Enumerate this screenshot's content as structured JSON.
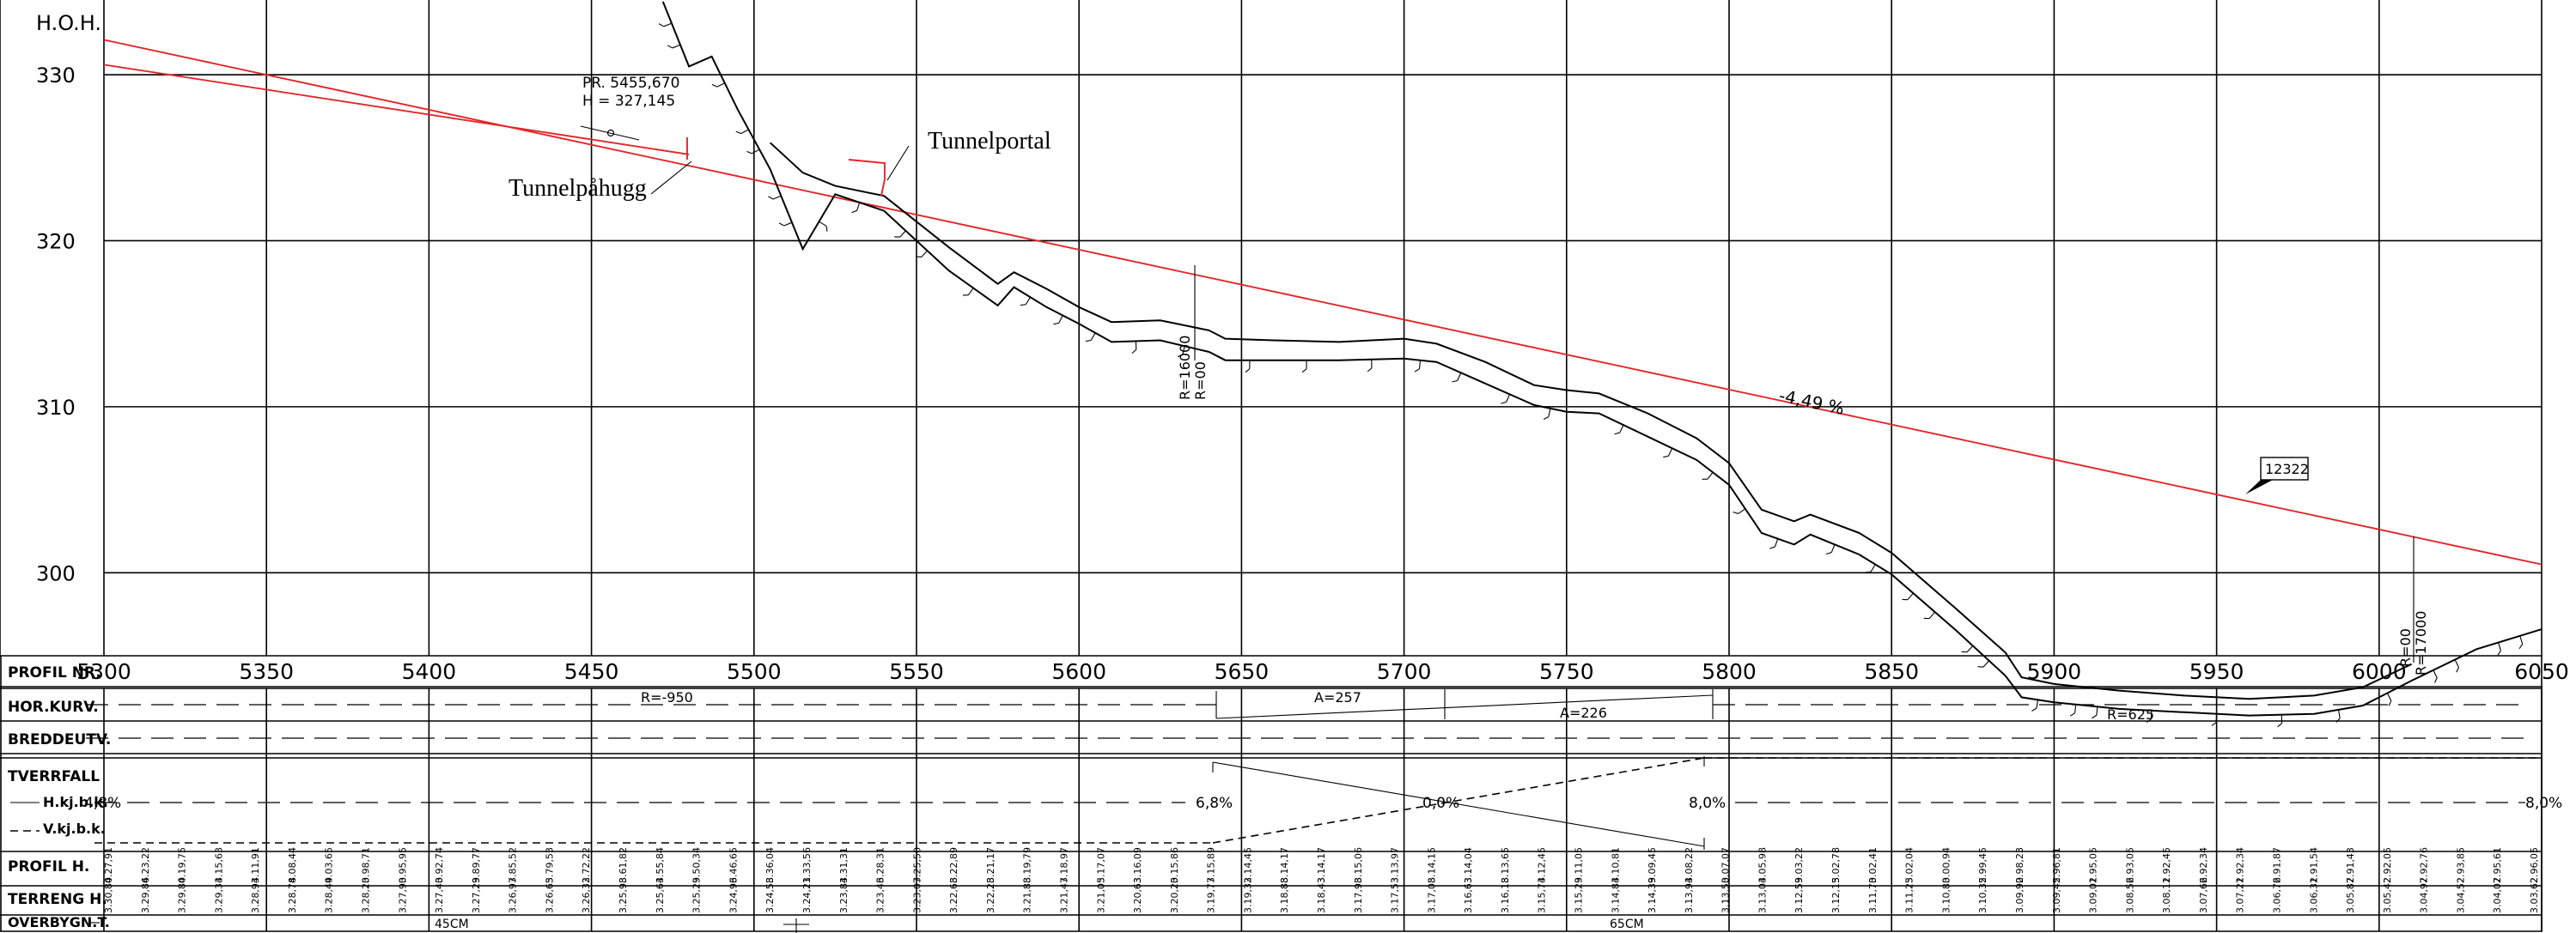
{
  "colors": {
    "alignment": "#e3262b",
    "grid": "#000000"
  },
  "chart_data": {
    "type": "line",
    "ylabel": "H.O.H.",
    "x_ticks": [
      "5300",
      "5350",
      "5400",
      "5450",
      "5500",
      "5550",
      "5600",
      "5650",
      "5700",
      "5750",
      "5800",
      "5850",
      "5900",
      "5950",
      "6000",
      "6050"
    ],
    "y_ticks": [
      "330",
      "320",
      "310",
      "300"
    ],
    "xlim": [
      5300,
      6050
    ],
    "ylim": [
      295,
      334.5
    ],
    "series": [
      {
        "role": "alignment-upper",
        "x": [
          5300,
          6050
        ],
        "y": [
          332.1,
          300.5
        ]
      },
      {
        "role": "alignment-lower",
        "x": [
          5300,
          5480
        ],
        "y": [
          330.6,
          325.2
        ]
      },
      {
        "role": "terrain",
        "x": [
          5472,
          5480,
          5487,
          5495,
          5505,
          5515,
          5525,
          5540,
          5560,
          5575,
          5580,
          5590,
          5600,
          5610,
          5625,
          5640,
          5645,
          5660,
          5680,
          5700,
          5710,
          5725,
          5740,
          5750,
          5760,
          5775,
          5790,
          5800,
          5810,
          5820,
          5825,
          5840,
          5850,
          5870,
          5885,
          5890,
          5900,
          5920,
          5940,
          5960,
          5980,
          5995,
          6010,
          6030,
          6050
        ],
        "y": [
          334.4,
          330.5,
          331.1,
          327.9,
          324.3,
          319.5,
          322.8,
          321.8,
          318.2,
          316.1,
          317.2,
          316.0,
          315.0,
          313.9,
          314.0,
          313.3,
          312.8,
          312.8,
          312.8,
          312.9,
          312.7,
          311.4,
          310.1,
          309.7,
          309.6,
          308.2,
          306.8,
          305.3,
          302.4,
          301.7,
          302.3,
          301.1,
          299.9,
          296.5,
          293.8,
          292.5,
          292.2,
          291.8,
          291.6,
          291.4,
          291.5,
          292.0,
          293.5,
          295.4,
          296.6
        ]
      },
      {
        "role": "terrain-offset",
        "x": [
          5505,
          5515,
          5525,
          5540,
          5560,
          5575,
          5580,
          5590,
          5600,
          5610,
          5625,
          5640,
          5645,
          5660,
          5680,
          5700,
          5710,
          5725,
          5740,
          5750,
          5760,
          5775,
          5790,
          5800,
          5810,
          5820,
          5825,
          5840,
          5850,
          5870,
          5885,
          5890,
          5900,
          5920,
          5940,
          5960,
          5980,
          5995,
          6010
        ],
        "y": [
          325.9,
          324.1,
          323.3,
          322.7,
          319.6,
          317.4,
          318.1,
          317.1,
          316.0,
          315.1,
          315.2,
          314.6,
          314.1,
          314.0,
          313.9,
          314.1,
          313.8,
          312.7,
          311.3,
          311.0,
          310.8,
          309.6,
          308.1,
          306.6,
          303.8,
          303.1,
          303.5,
          302.4,
          301.2,
          297.8,
          295.2,
          293.7,
          293.3,
          292.9,
          292.6,
          292.4,
          292.6,
          293.1,
          294.5
        ]
      }
    ]
  },
  "labels": {
    "hoh": "H.O.H.",
    "pr_line1": "PR. 5455,670",
    "pr_line2": "H = 327,145",
    "tunnelportal": "Tunnelportal",
    "tunnelpahugg": "Tunnelpåhugg",
    "gradient": "-4,49 %",
    "callout_box": "12322",
    "r16000": "R=16000",
    "r00": "R=00",
    "r17000": "R=17000",
    "r00b": "R=00"
  },
  "band": {
    "rows": {
      "profil_nr": "PROFIL  NR.",
      "hor_kurv": "HOR.KURV.",
      "breddeutv": "BREDDEUTV.",
      "tverrfall": "TVERRFALL",
      "h_kj": "H.kj.b.k.",
      "v_kj": "V.kj.b.k.",
      "profil_h": "PROFIL  H.",
      "terreng_h": "TERRENG  H.",
      "overbygn": "OVERBYGN.T."
    },
    "hor_kurv": {
      "r950": "R=-950",
      "a257": "A=257",
      "a226": "A=226",
      "r625": "R=625"
    },
    "tverrfall": {
      "left": "4,8%",
      "p1": "6,8%",
      "p2": "0,0%",
      "p3": "8,0%",
      "right": "8,0%"
    },
    "overbygn": {
      "c45": "45CM",
      "c65": "65CM"
    },
    "profil_h_values": [
      "4.27,91",
      "4.23,22",
      "4.19,75",
      "4.15,63",
      "4.11,91",
      "4.08,44",
      "4.03,65",
      "3.98,71",
      "3.95,95",
      "3.92,74",
      "3.89,77",
      "3.85,52",
      "3.79,53",
      "3.72,22",
      "3.61,82",
      "3.55,84",
      "3.50,34",
      "3.46,65",
      "3.36,04",
      "3.33,56",
      "3.31,31",
      "3.28,31",
      "3.25,50",
      "3.22,89",
      "3.21,17",
      "3.19,79",
      "3.18,97",
      "3.17,07",
      "3.16,09",
      "3.15,86",
      "3.15,89",
      "3.14,45",
      "3.14,17",
      "3.14,17",
      "3.15,06",
      "3.13,97",
      "3.14,15",
      "3.14,04",
      "3.13,65",
      "3.12,45",
      "3.11,05",
      "3.10,81",
      "3.09,45",
      "3.08,22",
      "3.07,07",
      "3.05,98",
      "3.03,22",
      "3.02,78",
      "3.02,41",
      "3.02,04",
      "3.00,94",
      "2.99,45",
      "2.98,23",
      "2.96,81",
      "2.95,05",
      "2.93,05",
      "2.92,45",
      "2.92,34",
      "2.92,34",
      "2.91,87",
      "2.91,54",
      "2.91,43",
      "2.92,05",
      "2.92,76",
      "2.93,85",
      "2.95,61",
      "2.96,05"
    ],
    "terreng_h_values": [
      "3.30,80",
      "3.29,86",
      "3.29,80",
      "3.29,33",
      "3.28,93",
      "3.28,78",
      "3.28,49",
      "3.28,20",
      "3.27,90",
      "3.27,40",
      "3.27,29",
      "3.26,97",
      "3.26,65",
      "3.26,32",
      "3.25,98",
      "3.25,64",
      "3.25,29",
      "3.24,96",
      "3.24,58",
      "3.24,21",
      "3.23,84",
      "3.23,46",
      "3.23,07",
      "3.22,68",
      "3.22,28",
      "3.21,88",
      "3.21,47",
      "3.21,05",
      "3.20,63",
      "3.20,20",
      "3.19,77",
      "3.19,32",
      "3.18,88",
      "3.18,43",
      "3.17,98",
      "3.17,53",
      "3.17,08",
      "3.16,63",
      "3.16,18",
      "3.15,74",
      "3.15,29",
      "3.14,84",
      "3.14,39",
      "3.13,94",
      "3.13,50",
      "3.13,04",
      "3.12,59",
      "3.12,15",
      "3.11,70",
      "3.11,25",
      "3.10,80",
      "3.10,35",
      "3.09,90",
      "3.09,45",
      "3.09,01",
      "3.08,56",
      "3.08,11",
      "3.07,66",
      "3.07,21",
      "3.06,76",
      "3.06,31",
      "3.05,87",
      "3.05,42",
      "3.04,97",
      "3.04,52",
      "3.04,07",
      "3.03,62"
    ]
  }
}
